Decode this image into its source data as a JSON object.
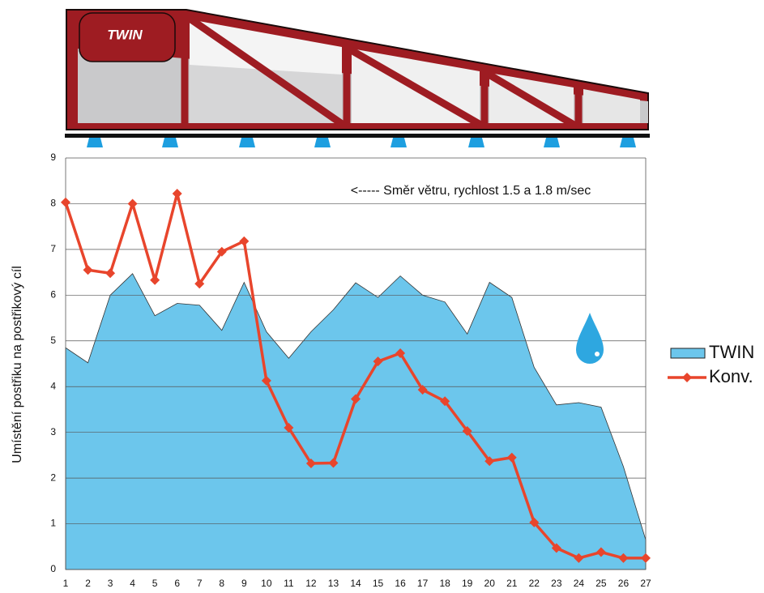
{
  "logo": "TWIN",
  "chart_data": {
    "type": "area-line",
    "annotation": "<----- Směr větru, rychlost 1.5 a 1.8 m/sec",
    "y_label": "Umístění postřiku na postřikový cíl",
    "x": [
      1,
      2,
      3,
      4,
      5,
      6,
      7,
      8,
      9,
      10,
      11,
      12,
      13,
      14,
      15,
      16,
      17,
      18,
      19,
      20,
      21,
      22,
      23,
      24,
      25,
      26,
      27
    ],
    "xlim": [
      1,
      27
    ],
    "xticks": [
      1,
      2,
      3,
      4,
      5,
      6,
      7,
      8,
      9,
      10,
      11,
      12,
      13,
      14,
      15,
      16,
      17,
      18,
      19,
      20,
      21,
      22,
      23,
      24,
      25,
      26,
      27
    ],
    "ylim": [
      0,
      9
    ],
    "yticks": [
      0,
      1,
      2,
      3,
      4,
      5,
      6,
      7,
      8,
      9
    ],
    "grid": true,
    "legend": "right",
    "series": [
      {
        "name": "TWIN",
        "kind": "area",
        "color": "#6cc6ec",
        "values": [
          4.85,
          4.52,
          6.0,
          6.47,
          5.55,
          5.82,
          5.78,
          5.23,
          6.28,
          5.2,
          4.62,
          5.2,
          5.68,
          6.27,
          5.95,
          6.42,
          6.0,
          5.85,
          5.15,
          6.28,
          5.95,
          4.42,
          3.6,
          3.65,
          3.55,
          2.25,
          0.65
        ]
      },
      {
        "name": "Konv.",
        "kind": "line",
        "color": "#e8452c",
        "values": [
          8.03,
          6.55,
          6.48,
          8.0,
          6.33,
          8.22,
          6.25,
          6.95,
          7.18,
          4.13,
          3.1,
          2.32,
          2.33,
          3.73,
          4.55,
          4.73,
          3.93,
          3.68,
          3.03,
          2.37,
          2.45,
          1.03,
          0.47,
          0.25,
          0.38,
          0.25,
          0.25
        ]
      }
    ]
  }
}
